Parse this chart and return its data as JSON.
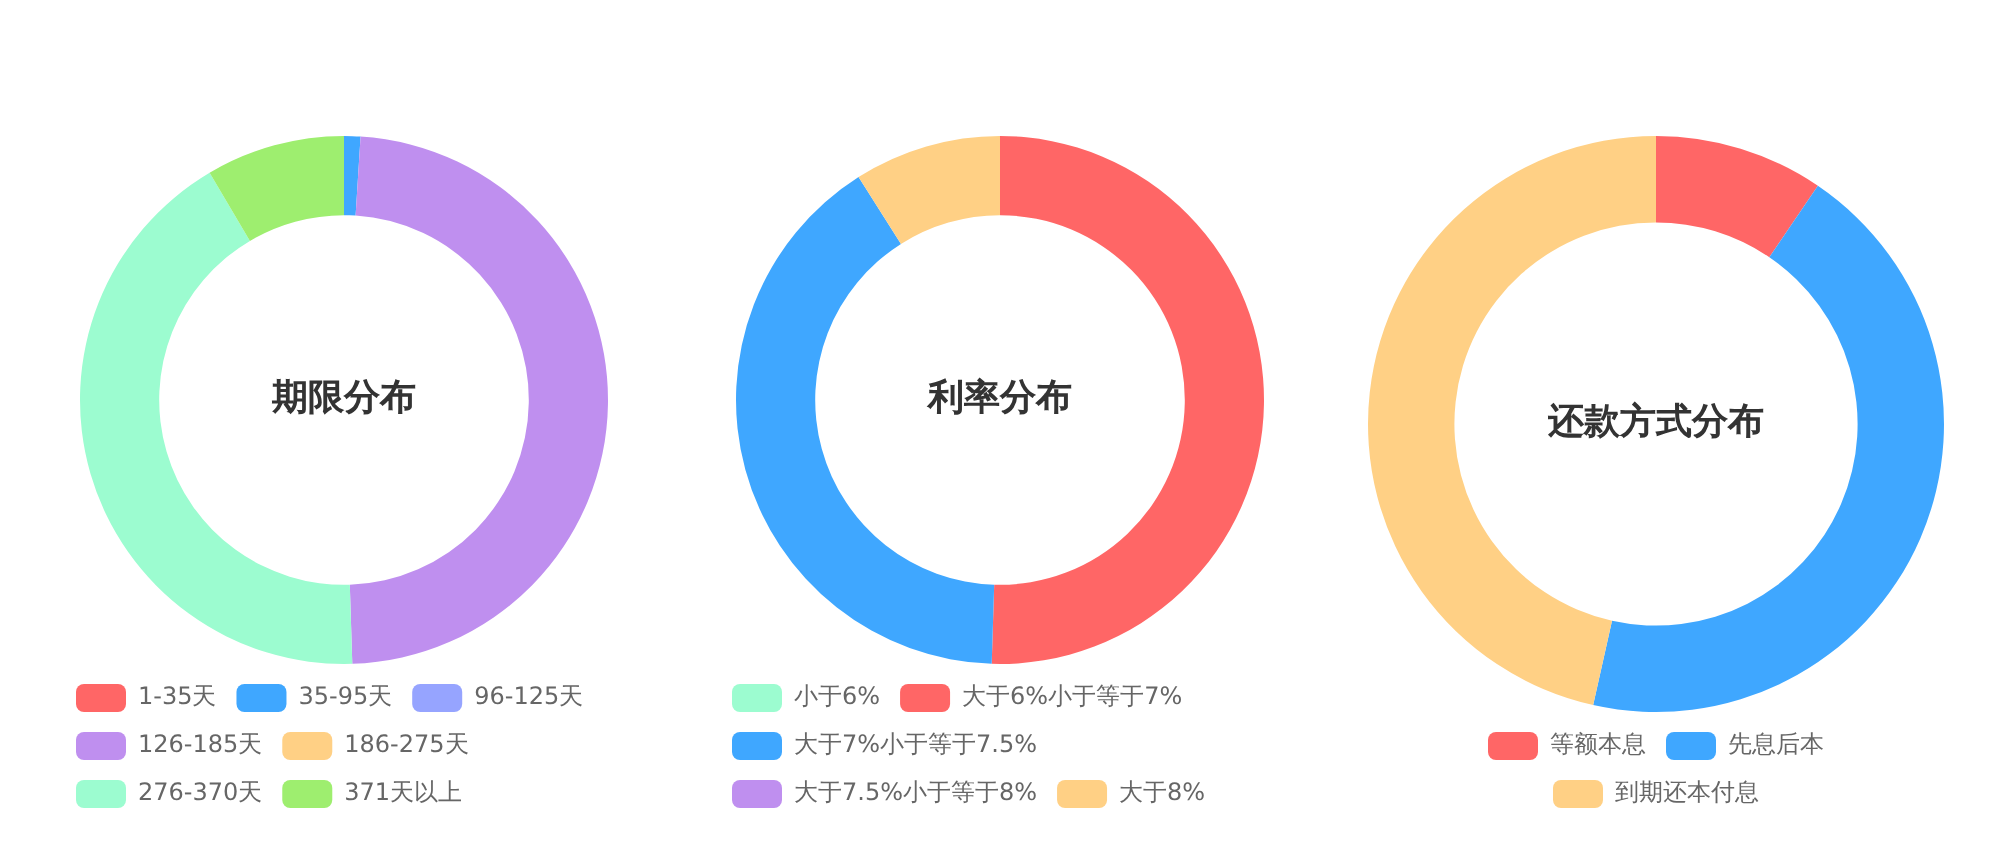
{
  "chart_data": [
    {
      "type": "donut",
      "title": "期限分布",
      "categories": [
        "1-35天",
        "35-95天",
        "96-125天",
        "126-185天",
        "186-275天",
        "276-370天",
        "371天以上"
      ],
      "values": [
        0,
        1,
        0,
        48.5,
        0,
        42,
        8.5
      ],
      "colors": [
        "#ff6666",
        "#3fa7ff",
        "#96a4ff",
        "#bf8fef",
        "#ffd085",
        "#9cfcd0",
        "#9eee6f"
      ],
      "legend": "bottom"
    },
    {
      "type": "donut",
      "title": "利率分布",
      "categories": [
        "小于6%",
        "大于6%小于等于7%",
        "大于7%小于等于7.5%",
        "大于7.5%小于等于8%",
        "大于8%"
      ],
      "values": [
        0,
        50.5,
        40.5,
        0,
        9
      ],
      "colors": [
        "#9cfcd0",
        "#ff6666",
        "#3fa7ff",
        "#bf8fef",
        "#ffd085"
      ],
      "legend": "bottom"
    },
    {
      "type": "donut",
      "title": "还款方式分布",
      "categories": [
        "等额本息",
        "先息后本",
        "到期还本付息"
      ],
      "values": [
        9.5,
        44,
        46.5
      ],
      "colors": [
        "#ff6666",
        "#3fa7ff",
        "#ffd085"
      ],
      "legend": "bottom"
    }
  ]
}
